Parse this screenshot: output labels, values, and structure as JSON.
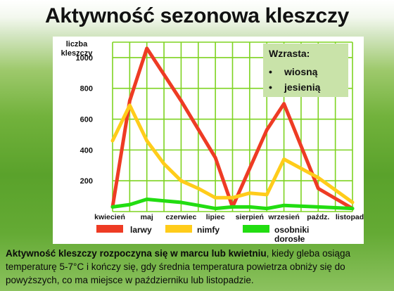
{
  "title": "Aktywność sezonowa kleszczy",
  "note": {
    "heading": "Wzrasta:",
    "items": [
      "wiosną",
      "jesienią"
    ]
  },
  "caption": {
    "bold": "Aktywność kleszczy rozpoczyna się w marcu lub kwietniu",
    "rest": ", kiedy gleba osiąga temperaturę 5-7°C i kończy się, gdy średnia temperatura powietrza obniży się do powyższych, co ma miejsce w październiku lub listopadzie."
  },
  "colors": {
    "larwy": "#ee3b24",
    "nimfy": "#ffcc1a",
    "osobniki": "#22dd11",
    "grid": "#7ed321"
  },
  "chart_data": {
    "type": "line",
    "ylabel": "liczba kleszczy",
    "ylim": [
      0,
      1100
    ],
    "yticks": [
      200,
      400,
      600,
      800,
      1000
    ],
    "x_positions": [
      0,
      0.5,
      1,
      1.5,
      2,
      2.5,
      3,
      3.5,
      4,
      4.5,
      5,
      5.5,
      6,
      6.5,
      7
    ],
    "x_labels": [
      {
        "x": 0,
        "label": "kwiecień"
      },
      {
        "x": 1,
        "label": "maj"
      },
      {
        "x": 2,
        "label": "czerwiec"
      },
      {
        "x": 3,
        "label": "lipiec"
      },
      {
        "x": 4,
        "label": "sierpień"
      },
      {
        "x": 5,
        "label": "wrzesień"
      },
      {
        "x": 6,
        "label": "paźdz."
      },
      {
        "x": 7,
        "label": "listopad"
      }
    ],
    "legend": [
      "larwy",
      "nimfy",
      "osobniki dorosłe"
    ],
    "series": [
      {
        "name": "larwy",
        "color": "#ee3b24",
        "points": [
          [
            0,
            30
          ],
          [
            0.5,
            720
          ],
          [
            1,
            1060
          ],
          [
            2,
            720
          ],
          [
            3,
            350
          ],
          [
            3.5,
            30
          ],
          [
            4,
            280
          ],
          [
            4.5,
            530
          ],
          [
            5,
            700
          ],
          [
            6,
            150
          ],
          [
            7,
            20
          ]
        ]
      },
      {
        "name": "nimfy",
        "color": "#ffcc1a",
        "points": [
          [
            0,
            460
          ],
          [
            0.5,
            690
          ],
          [
            1,
            460
          ],
          [
            1.5,
            310
          ],
          [
            2,
            200
          ],
          [
            2.5,
            150
          ],
          [
            3,
            90
          ],
          [
            3.5,
            90
          ],
          [
            4,
            120
          ],
          [
            4.5,
            110
          ],
          [
            5,
            340
          ],
          [
            6,
            220
          ],
          [
            7,
            60
          ]
        ]
      },
      {
        "name": "osobniki dorosłe",
        "color": "#22dd11",
        "points": [
          [
            0,
            30
          ],
          [
            0.5,
            45
          ],
          [
            1,
            80
          ],
          [
            1.5,
            70
          ],
          [
            2,
            60
          ],
          [
            2.5,
            40
          ],
          [
            3,
            20
          ],
          [
            3.5,
            30
          ],
          [
            4,
            30
          ],
          [
            4.5,
            20
          ],
          [
            5,
            40
          ],
          [
            6,
            30
          ],
          [
            7,
            20
          ]
        ]
      }
    ]
  }
}
